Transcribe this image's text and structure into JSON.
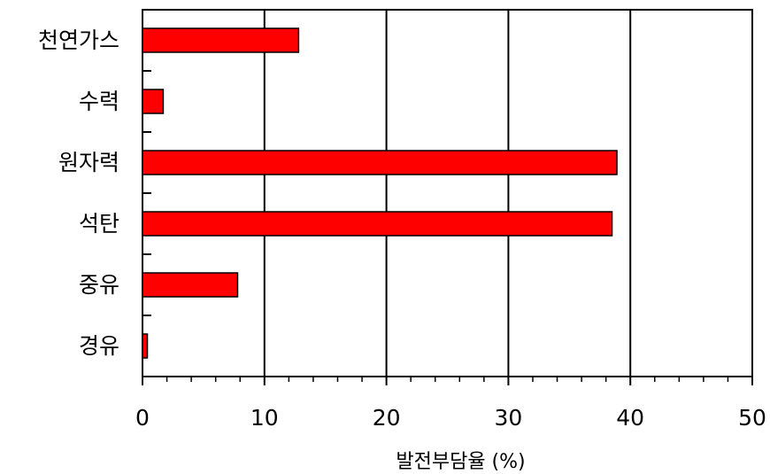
{
  "chart_data": {
    "type": "bar",
    "orientation": "horizontal",
    "categories": [
      "천연가스",
      "수력",
      "원자력",
      "석탄",
      "중유",
      "경유"
    ],
    "values": [
      12.8,
      1.7,
      38.9,
      38.5,
      7.8,
      0.4
    ],
    "xlabel": "발전부담율 (%)",
    "ylabel": "",
    "xlim": [
      0,
      50
    ],
    "xticks": [
      0,
      10,
      20,
      30,
      40,
      50
    ],
    "xtick_labels": [
      "0",
      "10",
      "20",
      "30",
      "40",
      "50"
    ],
    "minor_tick_step": 2,
    "grid": "vertical major lines",
    "legend": "none",
    "bar_color": "#ff0000",
    "bar_edge_color": "#000000"
  }
}
